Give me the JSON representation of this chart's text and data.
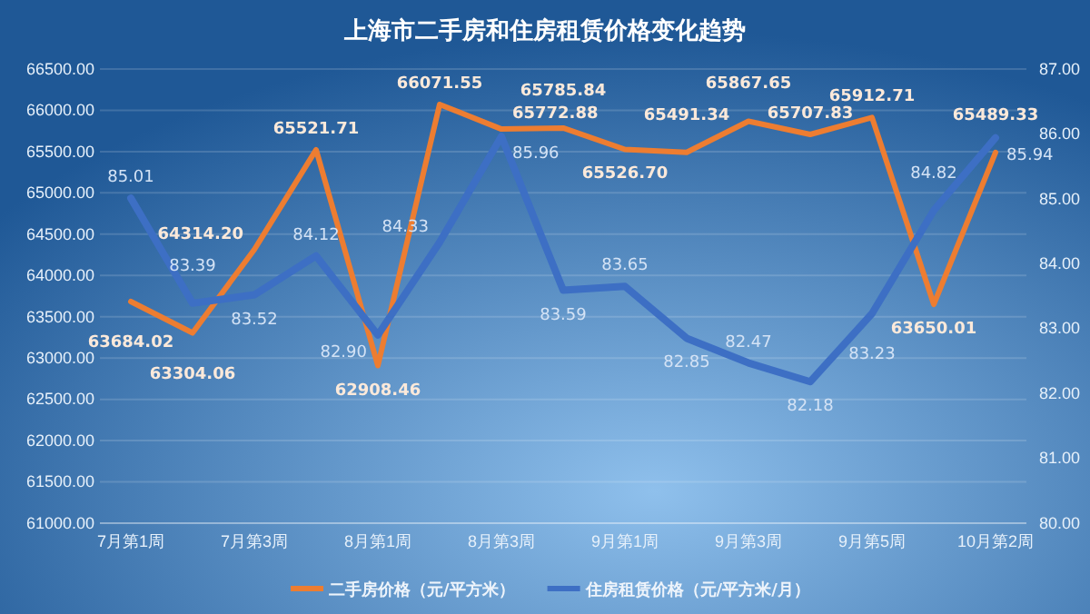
{
  "chart_data": {
    "type": "line",
    "title": "上海市二手房和住房租赁价格变化趋势",
    "categories": [
      "7月第1周",
      null,
      "7月第3周",
      null,
      "8月第1周",
      null,
      "8月第3周",
      null,
      "9月第1周",
      null,
      "9月第3周",
      null,
      "9月第5周",
      null,
      "10月第2周"
    ],
    "series": [
      {
        "name": "二手房价格（元/平方米）",
        "color": "#ed7d31",
        "values": [
          63684.02,
          63304.06,
          64314.2,
          65521.71,
          62908.46,
          66071.55,
          65772.88,
          65785.84,
          65526.7,
          65491.34,
          65867.65,
          65707.83,
          65912.71,
          63650.01,
          65489.33
        ],
        "value_labels": [
          "63684.02",
          "63304.06",
          "64314.20",
          "65521.71",
          "62908.46",
          "66071.55",
          "65772.88",
          "65785.84",
          "65526.70",
          "65491.34",
          "65867.65",
          "65707.83",
          "65912.71",
          "63650.01",
          "65489.33"
        ]
      },
      {
        "name": "住房租赁价格（元/平方米/月）",
        "color": "#3d6fc4",
        "axis": "y2",
        "values": [
          85.01,
          83.39,
          83.52,
          84.12,
          82.9,
          84.33,
          85.96,
          83.59,
          83.65,
          82.85,
          82.47,
          82.18,
          83.23,
          84.82,
          85.94
        ],
        "value_labels": [
          "85.01",
          "83.39",
          "83.52",
          "84.12",
          "82.90",
          "84.33",
          "85.96",
          "83.59",
          "83.65",
          "82.85",
          "82.47",
          "82.18",
          "83.23",
          "84.82",
          "85.94"
        ]
      }
    ],
    "ylim": [
      61000,
      66500
    ],
    "yticks": [
      {
        "value": 61000,
        "label": "61000.00"
      },
      {
        "value": 61500,
        "label": "61500.00"
      },
      {
        "value": 62000,
        "label": "62000.00"
      },
      {
        "value": 62500,
        "label": "62500.00"
      },
      {
        "value": 63000,
        "label": "63000.00"
      },
      {
        "value": 63500,
        "label": "63500.00"
      },
      {
        "value": 64000,
        "label": "64000.00"
      },
      {
        "value": 64500,
        "label": "64500.00"
      },
      {
        "value": 65000,
        "label": "65000.00"
      },
      {
        "value": 65500,
        "label": "65500.00"
      },
      {
        "value": 66000,
        "label": "66000.00"
      },
      {
        "value": 66500,
        "label": "66500.00"
      }
    ],
    "y2lim": [
      80,
      87
    ],
    "y2ticks": [
      {
        "value": 80,
        "label": "80.00"
      },
      {
        "value": 81,
        "label": "81.00"
      },
      {
        "value": 82,
        "label": "82.00"
      },
      {
        "value": 83,
        "label": "83.00"
      },
      {
        "value": 84,
        "label": "84.00"
      },
      {
        "value": 85,
        "label": "85.00"
      },
      {
        "value": 86,
        "label": "86.00"
      },
      {
        "value": 87,
        "label": "87.00"
      }
    ],
    "grid": "y",
    "legend": "bottom"
  }
}
